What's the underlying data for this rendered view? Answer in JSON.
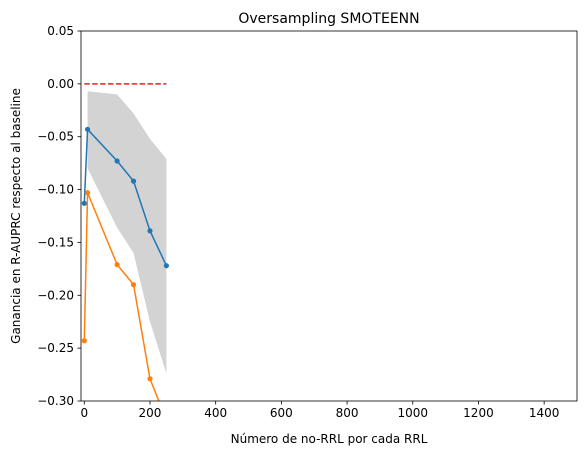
{
  "chart_data": {
    "type": "line",
    "title": "Oversampling SMOTEENN",
    "xlabel": "Número de no-RRL por cada RRL",
    "ylabel": "Ganancia en R-AUPRC respecto al baseline",
    "xlim": [
      -10,
      1500
    ],
    "ylim": [
      -0.3,
      0.05
    ],
    "xticks": [
      0,
      200,
      400,
      600,
      800,
      1000,
      1200,
      1400
    ],
    "yticks": [
      0.05,
      0.0,
      -0.05,
      -0.1,
      -0.15,
      -0.2,
      -0.25,
      -0.3
    ],
    "xtick_labels": [
      "0",
      "200",
      "400",
      "600",
      "800",
      "1000",
      "1200",
      "1400"
    ],
    "ytick_labels": [
      "0.05",
      "0.00",
      "−0.05",
      "−0.10",
      "−0.15",
      "−0.20",
      "−0.25",
      "−0.30"
    ],
    "grid": false,
    "baseline": {
      "y": 0.0,
      "x": [
        0,
        250
      ],
      "color": "#d62728",
      "style": "dashed"
    },
    "band": {
      "color": "#d3d3d3",
      "x": [
        10,
        100,
        150,
        200,
        250
      ],
      "upper": [
        -0.007,
        -0.01,
        -0.028,
        -0.052,
        -0.071
      ],
      "lower": [
        -0.08,
        -0.136,
        -0.16,
        -0.225,
        -0.274
      ]
    },
    "series": [
      {
        "color": "#1f77b4",
        "x": [
          0,
          10,
          100,
          150,
          200,
          250
        ],
        "y": [
          -0.113,
          -0.043,
          -0.073,
          -0.092,
          -0.139,
          -0.172
        ]
      },
      {
        "color": "#ff7f0e",
        "x": [
          0,
          10,
          100,
          150,
          200,
          250
        ],
        "y": [
          -0.243,
          -0.103,
          -0.171,
          -0.19,
          -0.279,
          -0.318
        ]
      }
    ]
  }
}
